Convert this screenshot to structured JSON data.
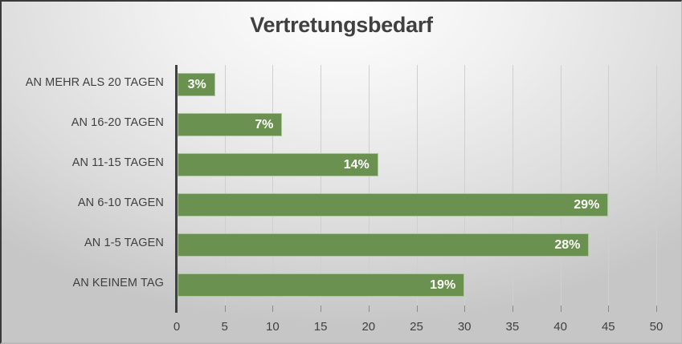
{
  "chart_data": {
    "type": "bar",
    "orientation": "horizontal",
    "title": "Vertretungsbedarf",
    "xlabel": "",
    "ylabel": "",
    "categories": [
      "AN MEHR ALS 20 TAGEN",
      "AN 16-20 TAGEN",
      "AN 11-15 TAGEN",
      "AN 6-10 TAGEN",
      "AN 1-5 TAGEN",
      "AN KEINEM TAG"
    ],
    "values": [
      4,
      11,
      21,
      45,
      43,
      30
    ],
    "data_labels": [
      "3%",
      "7%",
      "14%",
      "29%",
      "28%",
      "19%"
    ],
    "xlim": [
      0,
      50
    ],
    "xticks": [
      "0",
      "5",
      "10",
      "15",
      "20",
      "25",
      "30",
      "35",
      "40",
      "45",
      "50"
    ],
    "grid": true,
    "legend": null,
    "bar_color": "#6a9150"
  },
  "title": "Vertretungsbedarf",
  "colors": {
    "bar": "#6a9150",
    "bar_border": "#a9c59a",
    "text": "#404040",
    "label_text": "#ffffff"
  }
}
